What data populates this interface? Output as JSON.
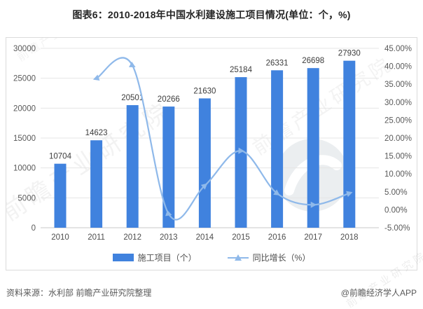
{
  "title": "图表6：2010-2018年中国水利建设施工项目情况(单位：个，%)",
  "chart_data": {
    "type": "bar",
    "title": "图表6：2010-2018年中国水利建设施工项目情况(单位：个，%)",
    "categories": [
      "2010",
      "2011",
      "2012",
      "2013",
      "2014",
      "2015",
      "2016",
      "2017",
      "2018"
    ],
    "series": [
      {
        "name": "施工项目（个）",
        "type": "bar",
        "axis": "left",
        "values": [
          10704,
          14623,
          20501,
          20266,
          21630,
          25184,
          26331,
          26698,
          27930
        ],
        "color": "#4082DE"
      },
      {
        "name": "同比增长（%）",
        "type": "line",
        "axis": "right",
        "values": [
          null,
          36.61,
          40.2,
          -1.15,
          6.73,
          16.43,
          4.55,
          1.39,
          4.61
        ],
        "color": "#8FB9EA"
      }
    ],
    "left_axis": {
      "min": 0,
      "max": 30000,
      "step": 5000
    },
    "right_axis": {
      "min": -5,
      "max": 45,
      "step": 5,
      "suffix": "%",
      "decimals": 2
    },
    "grid": true,
    "legend_position": "bottom",
    "data_labels": true
  },
  "legend": {
    "bar_label": "施工项目（个）",
    "line_label": "同比增长（%）"
  },
  "footer": {
    "source": "资料来源：水利部 前瞻产业研究院整理",
    "credit": "@前瞻经济学人APP"
  },
  "watermarks": {
    "text": "前瞻产业研究院"
  },
  "colors": {
    "bar": "#4082DE",
    "line": "#8FB9EA",
    "grid": "#E5E5E5",
    "axis_line": "#C9C9C9",
    "tick_label": "#595959",
    "value_label": "#3C3C3C",
    "title": "#262626",
    "frame_border": "#DBDBDB",
    "footer_text": "#595959",
    "watermark": "#8F8F8F"
  }
}
